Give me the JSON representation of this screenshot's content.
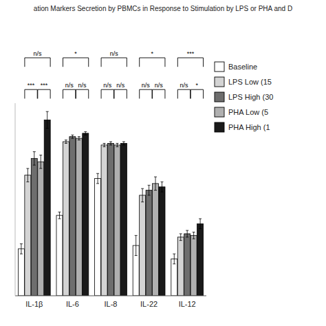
{
  "chart_data": {
    "type": "bar",
    "title": "ation Markers Secretion by PBMCs in Response to Stimulation by LPS or PHA and D",
    "categories": [
      "IL-1β",
      "IL-6",
      "IL-8",
      "IL-22",
      "IL-12"
    ],
    "series": [
      {
        "name": "Baseline",
        "color": "#ffffff",
        "values": [
          0.28,
          0.48,
          0.7,
          0.3,
          0.22
        ],
        "errors": [
          0.03,
          0.02,
          0.03,
          0.06,
          0.03
        ]
      },
      {
        "name": "LPS Low (15",
        "color": "#d4d4d4",
        "values": [
          0.72,
          0.92,
          0.9,
          0.6,
          0.35
        ],
        "errors": [
          0.04,
          0.01,
          0.01,
          0.04,
          0.02
        ]
      },
      {
        "name": "LPS High (30",
        "color": "#6e6e6e",
        "values": [
          0.82,
          0.95,
          0.91,
          0.63,
          0.37
        ],
        "errors": [
          0.04,
          0.01,
          0.01,
          0.03,
          0.02
        ]
      },
      {
        "name": "PHA Low (5",
        "color": "#b0b0b0",
        "values": [
          0.8,
          0.94,
          0.9,
          0.67,
          0.36
        ],
        "errors": [
          0.04,
          0.01,
          0.01,
          0.04,
          0.02
        ]
      },
      {
        "name": "PHA High (1",
        "color": "#1a1a1a",
        "values": [
          1.05,
          0.97,
          0.91,
          0.65,
          0.43
        ],
        "errors": [
          0.05,
          0.01,
          0.01,
          0.03,
          0.03
        ]
      }
    ],
    "annotations": [
      {
        "text": "n/s",
        "sub": [
          "***",
          "***"
        ]
      },
      {
        "text": "*",
        "sub": [
          "n/s",
          "n/s"
        ]
      },
      {
        "text": "n/s",
        "sub": [
          "n/s",
          "n/s"
        ]
      },
      {
        "text": "*",
        "sub": [
          "n/s",
          "n/s"
        ]
      },
      {
        "text": "***",
        "sub": [
          "n/s",
          "*"
        ]
      }
    ],
    "ylim": [
      0,
      1.15
    ],
    "tick_labels": "x",
    "legend": "right"
  }
}
